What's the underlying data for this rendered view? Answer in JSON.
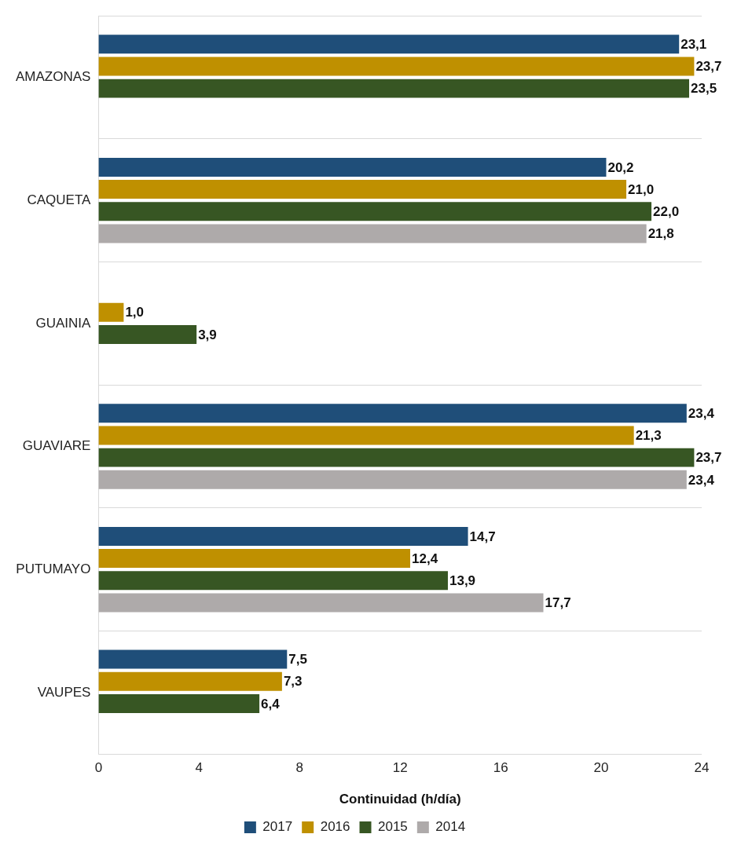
{
  "chart_data": {
    "type": "bar",
    "orientation": "horizontal",
    "xlabel": "Continuidad (h/día)",
    "categories": [
      "AMAZONAS",
      "CAQUETA",
      "GUAINIA",
      "GUAVIARE",
      "PUTUMAYO",
      "VAUPES"
    ],
    "series": [
      {
        "name": "2017",
        "color": "#1f4e79",
        "values": [
          23.1,
          20.2,
          null,
          23.4,
          14.7,
          7.5
        ],
        "value_labels": [
          "23,1",
          "20,2",
          null,
          "23,4",
          "14,7",
          "7,5"
        ]
      },
      {
        "name": "2016",
        "color": "#bf9000",
        "values": [
          23.7,
          21.0,
          1.0,
          21.3,
          12.4,
          7.3
        ],
        "value_labels": [
          "23,7",
          "21,0",
          "1,0",
          "21,3",
          "12,4",
          "7,3"
        ]
      },
      {
        "name": "2015",
        "color": "#375623",
        "values": [
          23.5,
          22.0,
          3.9,
          23.7,
          13.9,
          6.4
        ],
        "value_labels": [
          "23,5",
          "22,0",
          "3,9",
          "23,7",
          "13,9",
          "6,4"
        ]
      },
      {
        "name": "2014",
        "color": "#aeaaaa",
        "values": [
          null,
          21.8,
          null,
          23.4,
          17.7,
          null
        ],
        "value_labels": [
          null,
          "21,8",
          null,
          "23,4",
          "17,7",
          null
        ]
      }
    ],
    "xlim": [
      0,
      24
    ],
    "xticks": [
      0,
      4,
      8,
      12,
      16,
      20,
      24
    ],
    "grid": "y",
    "legend": "bottom"
  }
}
